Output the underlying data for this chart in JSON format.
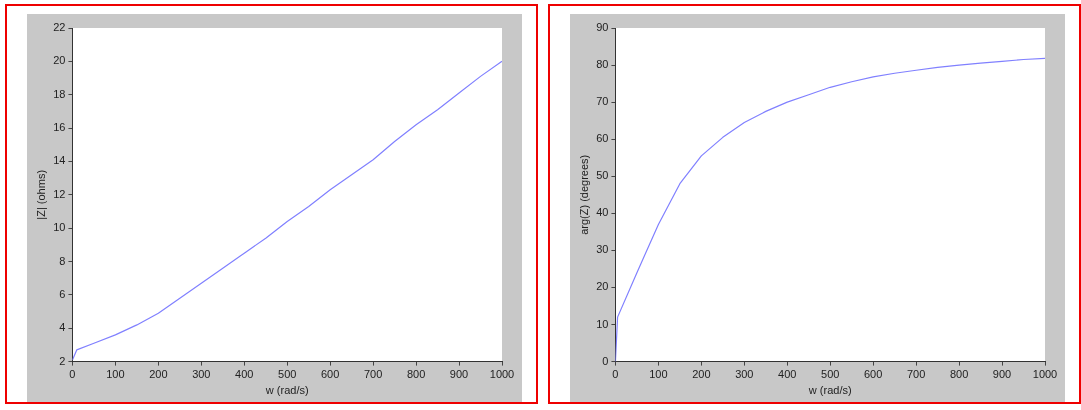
{
  "chart_data": [
    {
      "type": "line",
      "xlabel": "w (rad/s)",
      "ylabel": "|Z| (ohms)",
      "x": [
        0,
        10,
        50,
        100,
        150,
        200,
        250,
        300,
        350,
        400,
        450,
        500,
        550,
        600,
        650,
        700,
        750,
        800,
        850,
        900,
        950,
        1000
      ],
      "series": [
        {
          "color": "#8080ff",
          "values": [
            2.1,
            2.7,
            3.1,
            3.6,
            4.2,
            4.9,
            5.8,
            6.7,
            7.6,
            8.5,
            9.4,
            10.4,
            11.3,
            12.3,
            13.2,
            14.1,
            15.2,
            16.2,
            17.1,
            18.1,
            19.1,
            20.0
          ]
        }
      ],
      "xlim": [
        0,
        1000
      ],
      "xticks": [
        0,
        100,
        200,
        300,
        400,
        500,
        600,
        700,
        800,
        900,
        1000
      ],
      "ylim": [
        2,
        22
      ],
      "yticks": [
        2,
        4,
        6,
        8,
        10,
        12,
        14,
        16,
        18,
        20,
        22
      ],
      "grid": false,
      "legend": false
    },
    {
      "type": "line",
      "xlabel": "w (rad/s)",
      "ylabel": "arg(Z) (degrees)",
      "x": [
        0,
        5,
        50,
        100,
        150,
        200,
        250,
        300,
        350,
        400,
        450,
        500,
        550,
        600,
        650,
        700,
        750,
        800,
        850,
        900,
        950,
        1000
      ],
      "series": [
        {
          "color": "#8080ff",
          "values": [
            0,
            12,
            24,
            37,
            48,
            55.5,
            60.5,
            64.5,
            67.5,
            70,
            72,
            74,
            75.5,
            76.8,
            77.8,
            78.6,
            79.4,
            80,
            80.5,
            81,
            81.5,
            81.8
          ]
        }
      ],
      "xlim": [
        0,
        1000
      ],
      "xticks": [
        0,
        100,
        200,
        300,
        400,
        500,
        600,
        700,
        800,
        900,
        1000
      ],
      "ylim": [
        0,
        90
      ],
      "yticks": [
        0,
        10,
        20,
        30,
        40,
        50,
        60,
        70,
        80,
        90
      ],
      "grid": false,
      "legend": false
    }
  ]
}
